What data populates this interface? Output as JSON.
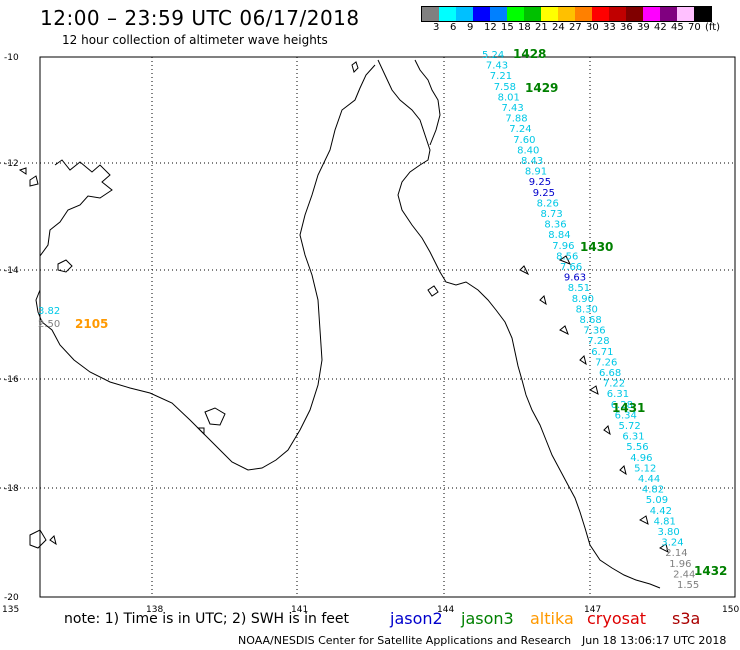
{
  "header": {
    "title": "12:00 – 23:59 UTC 06/17/2018",
    "subtitle": "12 hour collection of altimeter wave heights"
  },
  "scale": {
    "colors": [
      "#808080",
      "#00ffff",
      "#00c0ff",
      "#0000ff",
      "#0080ff",
      "#00ff00",
      "#00c000",
      "#ffff00",
      "#ffc000",
      "#ff8000",
      "#ff0000",
      "#c00000",
      "#800000",
      "#ff00ff",
      "#800080",
      "#ffc0ff",
      "#000000"
    ],
    "labels": [
      "3",
      "6",
      "9",
      "12",
      "15",
      "18",
      "21",
      "24",
      "27",
      "30",
      "33",
      "36",
      "39",
      "42",
      "45",
      "70",
      "(ft)"
    ]
  },
  "axes": {
    "lat_labels": [
      "-10",
      "-12",
      "-14",
      "-16",
      "-18",
      "-20"
    ],
    "lon_labels": [
      "135",
      "138",
      "141",
      "144",
      "147",
      "150"
    ]
  },
  "track_labels": [
    {
      "text": "1428",
      "color": "#008000"
    },
    {
      "text": "1429",
      "color": "#008000"
    },
    {
      "text": "1430",
      "color": "#008000"
    },
    {
      "text": "1431",
      "color": "#008000"
    },
    {
      "text": "1432",
      "color": "#008000"
    },
    {
      "text": "2105",
      "color": "#ff9900"
    }
  ],
  "observations": [
    {
      "v": "5.24",
      "c": "#00c8e6"
    },
    {
      "v": "7.43",
      "c": "#00c8e6"
    },
    {
      "v": "7.21",
      "c": "#00c8e6"
    },
    {
      "v": "7.58",
      "c": "#00c8e6"
    },
    {
      "v": "8.01",
      "c": "#00c8e6"
    },
    {
      "v": "7.43",
      "c": "#00c8e6"
    },
    {
      "v": "7.88",
      "c": "#00c8e6"
    },
    {
      "v": "7.24",
      "c": "#00c8e6"
    },
    {
      "v": "7.60",
      "c": "#00c8e6"
    },
    {
      "v": "8.40",
      "c": "#00c8e6"
    },
    {
      "v": "8.43",
      "c": "#00c8e6"
    },
    {
      "v": "8.91",
      "c": "#00c8e6"
    },
    {
      "v": "9.25",
      "c": "#0000cc"
    },
    {
      "v": "9.25",
      "c": "#0000cc"
    },
    {
      "v": "8.26",
      "c": "#00c8e6"
    },
    {
      "v": "8.73",
      "c": "#00c8e6"
    },
    {
      "v": "8.36",
      "c": "#00c8e6"
    },
    {
      "v": "8.84",
      "c": "#00c8e6"
    },
    {
      "v": "7.96",
      "c": "#00c8e6"
    },
    {
      "v": "8.56",
      "c": "#00c8e6"
    },
    {
      "v": "7.66",
      "c": "#00c8e6"
    },
    {
      "v": "9.63",
      "c": "#0000cc"
    },
    {
      "v": "8.51",
      "c": "#00c8e6"
    },
    {
      "v": "8.90",
      "c": "#00c8e6"
    },
    {
      "v": "8.30",
      "c": "#00c8e6"
    },
    {
      "v": "8.68",
      "c": "#00c8e6"
    },
    {
      "v": "7.36",
      "c": "#00c8e6"
    },
    {
      "v": "7.28",
      "c": "#00c8e6"
    },
    {
      "v": "6.71",
      "c": "#00c8e6"
    },
    {
      "v": "7.26",
      "c": "#00c8e6"
    },
    {
      "v": "6.68",
      "c": "#00c8e6"
    },
    {
      "v": "7.22",
      "c": "#00c8e6"
    },
    {
      "v": "6.31",
      "c": "#00c8e6"
    },
    {
      "v": "6.28",
      "c": "#00c8e6"
    },
    {
      "v": "6.34",
      "c": "#00c8e6"
    },
    {
      "v": "5.72",
      "c": "#00c8e6"
    },
    {
      "v": "6.31",
      "c": "#00c8e6"
    },
    {
      "v": "5.56",
      "c": "#00c8e6"
    },
    {
      "v": "4.96",
      "c": "#00c8e6"
    },
    {
      "v": "5.12",
      "c": "#00c8e6"
    },
    {
      "v": "4.44",
      "c": "#00c8e6"
    },
    {
      "v": "4.82",
      "c": "#00c8e6"
    },
    {
      "v": "5.09",
      "c": "#00c8e6"
    },
    {
      "v": "4.42",
      "c": "#00c8e6"
    },
    {
      "v": "4.81",
      "c": "#00c8e6"
    },
    {
      "v": "3.80",
      "c": "#00c8e6"
    },
    {
      "v": "3.24",
      "c": "#00c8e6"
    },
    {
      "v": "2.14",
      "c": "#808080"
    },
    {
      "v": "1.96",
      "c": "#808080"
    },
    {
      "v": "2.44",
      "c": "#808080"
    },
    {
      "v": "1.55",
      "c": "#808080"
    },
    {
      "v": "3.82",
      "c": "#00c8e6"
    },
    {
      "v": "2.50",
      "c": "#808080"
    }
  ],
  "footer": {
    "note": "note: 1) Time is in UTC; 2) SWH is in feet",
    "sat_jason2": "jason2",
    "sat_jason3": "jason3",
    "sat_altika": "altika",
    "sat_cryosat": "cryosat",
    "sat_s3a": "s3a",
    "credit": "NOAA/NESDIS Center for Satellite Applications and Research",
    "stamp": "Jun 18 13:06:17 UTC 2018"
  },
  "colors": {
    "jason2": "#0000cc",
    "jason3": "#008000",
    "altika": "#ff9900",
    "cryosat": "#dd0000",
    "s3a": "#aa0000"
  }
}
